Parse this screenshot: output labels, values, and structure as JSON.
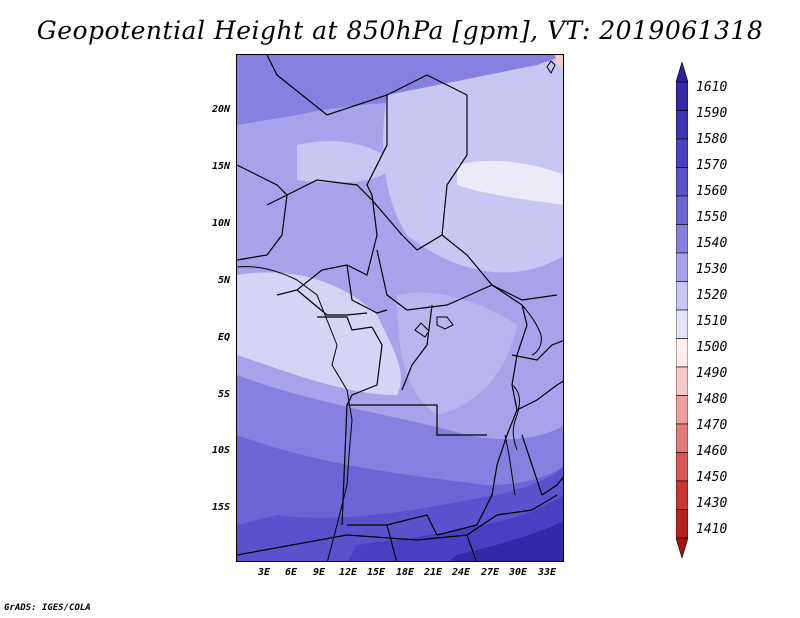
{
  "title": "Geopotential Height at 850hPa [gpm], VT: 2019061318",
  "credit": "GrADS: IGES/COLA",
  "map": {
    "lat_labels": [
      "20N",
      "15N",
      "10N",
      "5N",
      "EQ",
      "5S",
      "10S",
      "15S"
    ],
    "lon_labels": [
      "3E",
      "6E",
      "9E",
      "12E",
      "15E",
      "18E",
      "21E",
      "24E",
      "27E",
      "30E",
      "33E"
    ],
    "region": "Central Africa"
  },
  "colorbar": {
    "labels": [
      "1610",
      "1590",
      "1580",
      "1570",
      "1560",
      "1550",
      "1540",
      "1530",
      "1520",
      "1510",
      "1500",
      "1490",
      "1480",
      "1470",
      "1460",
      "1450",
      "1430",
      "1410"
    ],
    "colors": [
      "#2b1f9c",
      "#3428a8",
      "#3e33b6",
      "#4a3fc2",
      "#5b51cc",
      "#6d65d6",
      "#8780e0",
      "#a7a2ea",
      "#c8c6f2",
      "#e4e3f8",
      "#ffeded",
      "#f7c9c9",
      "#ee9f9f",
      "#e47b7b",
      "#d95555",
      "#cc3333",
      "#b81f1f",
      "#a31515"
    ]
  }
}
